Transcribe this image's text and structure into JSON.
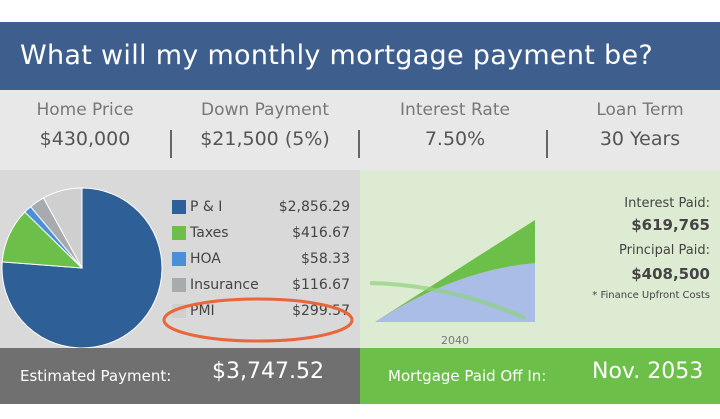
{
  "title": "What will my monthly mortgage payment be?",
  "inputs": [
    {
      "label": "Home Price",
      "value": "$430,000"
    },
    {
      "label": "Down Payment",
      "value": "$21,500 (5%)"
    },
    {
      "label": "Interest Rate",
      "value": "7.50%"
    },
    {
      "label": "Loan Term",
      "value": "30 Years"
    }
  ],
  "breakdown": [
    {
      "label": "P & I",
      "amount": "$2,856.29",
      "value": 2856.29,
      "color": "#2e5f96"
    },
    {
      "label": "Taxes",
      "amount": "$416.67",
      "value": 416.67,
      "color": "#6cc04a"
    },
    {
      "label": "HOA",
      "amount": "$58.33",
      "value": 58.33,
      "color": "#4a8fd8"
    },
    {
      "label": "Insurance",
      "amount": "$116.67",
      "value": 116.67,
      "color": "#a8abae"
    },
    {
      "label": "PMI",
      "amount": "$299.57",
      "value": 299.57,
      "color": "#cfcfcf"
    }
  ],
  "highlight_color": "#e8663a",
  "chart": {
    "x_tick": "2040"
  },
  "stats": {
    "interest_label": "Interest Paid:",
    "interest_value": "$619,765",
    "principal_label": "Principal Paid:",
    "principal_value": "$408,500",
    "note": "* Finance Upfront Costs"
  },
  "footer": {
    "estimated_label": "Estimated Payment:",
    "estimated_value": "$3,747.52",
    "payoff_label": "Mortgage Paid Off In:",
    "payoff_value": "Nov. 2053"
  }
}
